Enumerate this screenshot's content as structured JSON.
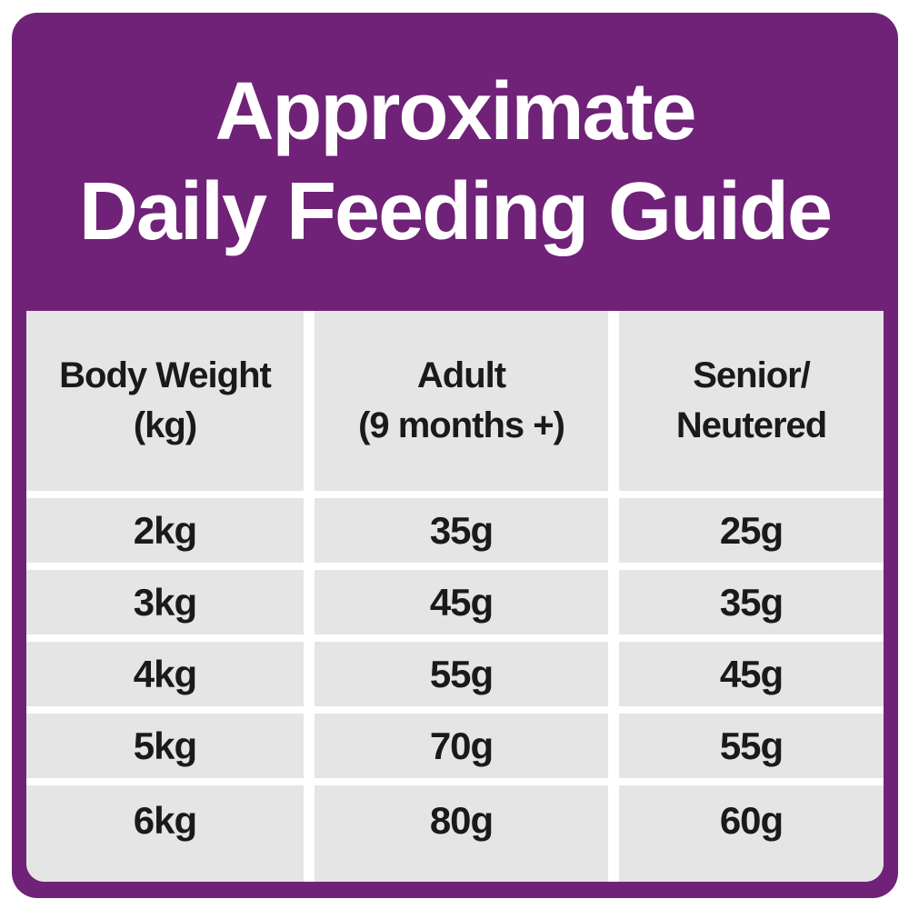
{
  "theme": {
    "card_purple": "#6f2277",
    "cell_gray": "#e6e5e6",
    "gap_white": "#ffffff",
    "text_dark": "#1a1a1a",
    "title_white": "#ffffff"
  },
  "title": {
    "line1": "Approximate",
    "line2": "Daily Feeding Guide"
  },
  "table": {
    "columns": [
      {
        "line1": "Body Weight",
        "line2": "(kg)"
      },
      {
        "line1": "Adult",
        "line2": "(9 months +)"
      },
      {
        "line1": "Senior/",
        "line2": "Neutered"
      }
    ],
    "rows": [
      {
        "weight": "2kg",
        "adult": "35g",
        "senior": "25g"
      },
      {
        "weight": "3kg",
        "adult": "45g",
        "senior": "35g"
      },
      {
        "weight": "4kg",
        "adult": "55g",
        "senior": "45g"
      },
      {
        "weight": "5kg",
        "adult": "70g",
        "senior": "55g"
      },
      {
        "weight": "6kg",
        "adult": "80g",
        "senior": "60g"
      }
    ]
  },
  "chart_data": {
    "type": "table",
    "title": "Approximate Daily Feeding Guide",
    "columns": [
      "Body Weight (kg)",
      "Adult (9 months +)",
      "Senior/Neutered"
    ],
    "rows": [
      [
        "2kg",
        "35g",
        "25g"
      ],
      [
        "3kg",
        "45g",
        "35g"
      ],
      [
        "4kg",
        "55g",
        "45g"
      ],
      [
        "5kg",
        "70g",
        "55g"
      ],
      [
        "6kg",
        "80g",
        "60g"
      ]
    ],
    "units": "grams per day",
    "layout": {
      "header_background": "#e6e5e6",
      "cell_background": "#e6e5e6",
      "frame_color": "#6f2277"
    }
  }
}
